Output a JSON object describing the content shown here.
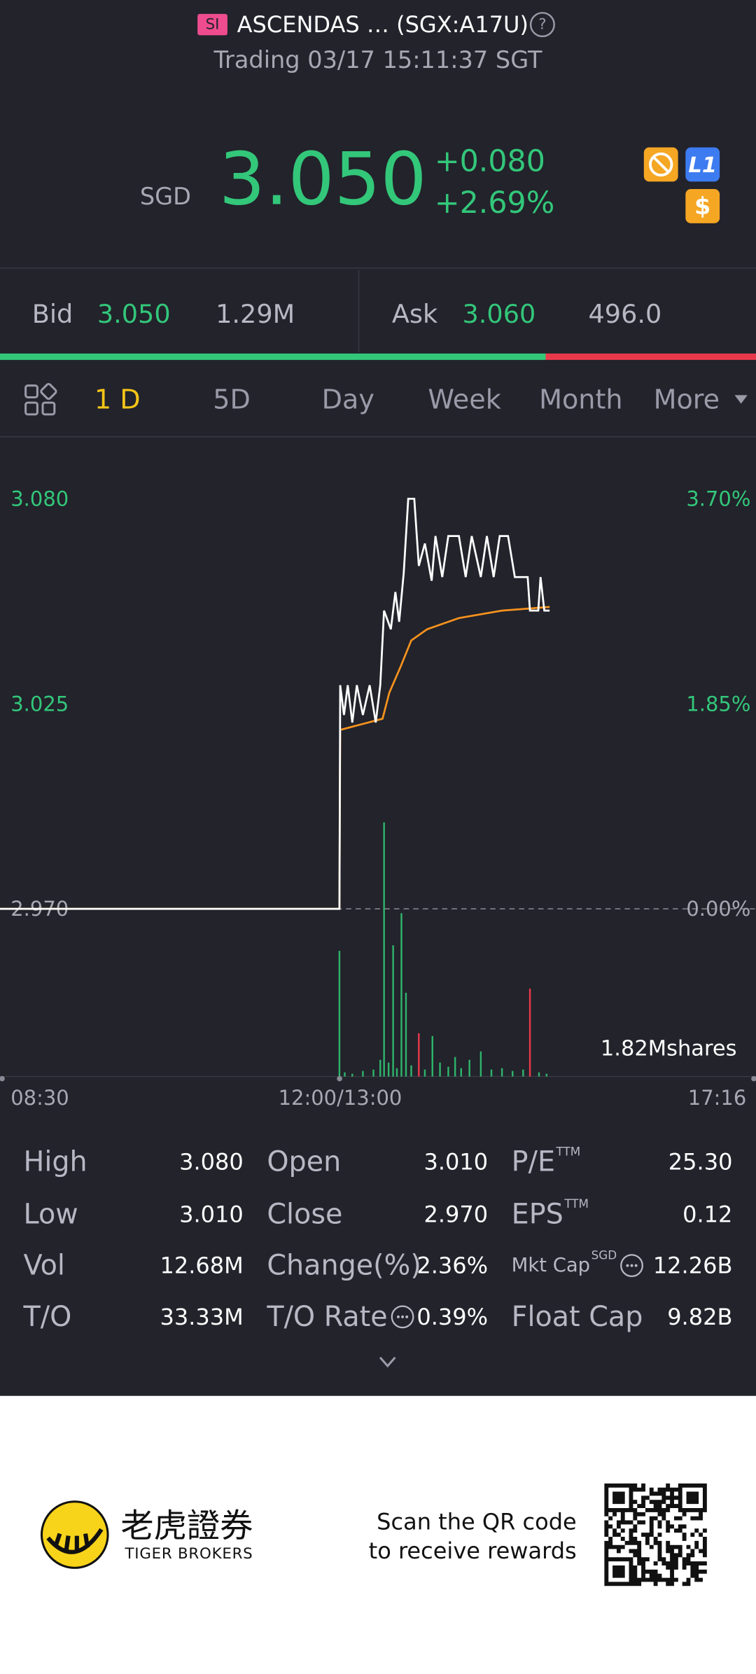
{
  "header": {
    "badge": "SI",
    "name": "ASCENDAS … (SGX:A17U)",
    "help": "?",
    "status": "Trading 03/17 15:11:37 SGT"
  },
  "quote": {
    "currency": "SGD",
    "price": "3.050",
    "change": "+0.080",
    "change_pct": "+2.69%",
    "icons": [
      "L1",
      "$"
    ]
  },
  "bid_ask": {
    "bid_label": "Bid",
    "bid": "3.050",
    "bid_size": "1.29M",
    "ask_label": "Ask",
    "ask": "3.060",
    "ask_size": "496.0"
  },
  "tabs": [
    "1 D",
    "5D",
    "Day",
    "Week",
    "Month",
    "More"
  ],
  "chart_data": {
    "type": "line",
    "xlim": [
      0,
      100
    ],
    "xticks": [
      {
        "value": 0,
        "label": "08:30"
      },
      {
        "value": 45,
        "label": "12:00/13:00"
      },
      {
        "value": 100,
        "label": "17:16"
      }
    ],
    "ylim": [
      2.97,
      3.08
    ],
    "yticks": [
      {
        "value": 3.08,
        "label": "3.080"
      },
      3.025,
      {
        "value": 2.97,
        "label": "2.970"
      }
    ],
    "y2lim": [
      0,
      3.7
    ],
    "y2ticks": [
      {
        "value": 3.7,
        "label": "3.70%"
      },
      {
        "value": 1.85,
        "label": "1.85%"
      },
      {
        "value": 0,
        "label": "0.00%"
      }
    ],
    "series": [
      {
        "color": "#ffffff",
        "x": [
          0,
          44.9,
          45.0,
          45.5,
          46.0,
          46.6,
          47.2,
          48.0,
          48.9,
          49.7,
          50.3,
          50.8,
          51.7,
          52.3,
          52.8,
          53.4,
          54.0,
          54.8,
          55.4,
          56.2,
          57.1,
          57.6,
          58.5,
          59.3,
          60.7,
          61.6,
          62.4,
          63.6,
          64.4,
          65.3,
          66.1,
          67.2,
          68.1,
          69.8,
          70.1,
          71.2,
          71.5,
          72.0,
          72.7
        ],
        "values": [
          2.97,
          2.97,
          3.03,
          3.022,
          3.03,
          3.02,
          3.03,
          3.022,
          3.03,
          3.02,
          3.03,
          3.05,
          3.045,
          3.055,
          3.047,
          3.06,
          3.08,
          3.08,
          3.062,
          3.068,
          3.058,
          3.07,
          3.059,
          3.07,
          3.07,
          3.059,
          3.07,
          3.059,
          3.07,
          3.059,
          3.07,
          3.07,
          3.059,
          3.059,
          3.05,
          3.05,
          3.059,
          3.05,
          3.05
        ]
      },
      {
        "color": "#f5921e",
        "x": [
          0,
          44.9,
          45.0,
          50.6,
          51.5,
          53.0,
          54.4,
          56.5,
          60.7,
          66.4,
          72.7
        ],
        "values": [
          2.97,
          2.97,
          3.018,
          3.021,
          3.028,
          3.035,
          3.042,
          3.045,
          3.048,
          3.05,
          3.051
        ]
      }
    ],
    "volume": {
      "x": [
        44.9,
        45.6,
        46.6,
        48.0,
        49.4,
        50.3,
        50.8,
        51.4,
        52.0,
        52.5,
        53.1,
        53.7,
        54.4,
        55.4,
        56.2,
        57.2,
        58.2,
        59.3,
        60.2,
        61.0,
        62.1,
        63.6,
        65.0,
        66.4,
        67.8,
        69.2,
        70.1,
        71.3,
        72.3
      ],
      "values": [
        0.9,
        0.03,
        0.02,
        0.04,
        0.05,
        0.12,
        1.82,
        0.1,
        0.94,
        0.06,
        1.17,
        0.6,
        0.08,
        0.31,
        0.05,
        0.29,
        0.1,
        0.07,
        0.14,
        0.06,
        0.12,
        0.18,
        0.05,
        0.06,
        0.04,
        0.05,
        0.63,
        0.03,
        0.02
      ],
      "colors": [
        "#2fb36b",
        "#2fb36b",
        "#2fb36b",
        "#2fb36b",
        "#2fb36b",
        "#2fb36b",
        "#2fb36b",
        "#2fb36b",
        "#2fb36b",
        "#2fb36b",
        "#2fb36b",
        "#2fb36b",
        "#2fb36b",
        "#e8394a",
        "#2fb36b",
        "#2fb36b",
        "#2fb36b",
        "#2fb36b",
        "#2fb36b",
        "#2fb36b",
        "#2fb36b",
        "#2fb36b",
        "#2fb36b",
        "#2fb36b",
        "#2fb36b",
        "#2fb36b",
        "#e8394a",
        "#2fb36b",
        "#2fb36b"
      ]
    },
    "volume_label": {
      "value": 1.82,
      "label": "1.82Mshares"
    }
  },
  "stats": [
    [
      {
        "label": "High",
        "value": "3.080"
      },
      {
        "label": "Open",
        "value": "3.010"
      },
      {
        "label": "P/E",
        "sup": "TTM",
        "value": "25.30"
      }
    ],
    [
      {
        "label": "Low",
        "value": "3.010"
      },
      {
        "label": "Close",
        "value": "2.970"
      },
      {
        "label": "EPS",
        "sup": "TTM",
        "value": "0.12"
      }
    ],
    [
      {
        "label": "Vol",
        "value": "12.68M"
      },
      {
        "label": "Change(%)",
        "value": "2.36%"
      },
      {
        "label": "Mkt Cap",
        "sup": "SGD",
        "value": "12.26B"
      }
    ],
    [
      {
        "label": "T/O",
        "value": "33.33M"
      },
      {
        "label": "T/O Rate",
        "value": "0.39%"
      },
      {
        "label": "Float Cap",
        "value": "9.82B"
      }
    ]
  ],
  "footer": {
    "brand_cn": "老虎證券",
    "brand_en": "TIGER BROKERS",
    "cta": [
      "Scan the QR code",
      "to receive rewards"
    ]
  }
}
